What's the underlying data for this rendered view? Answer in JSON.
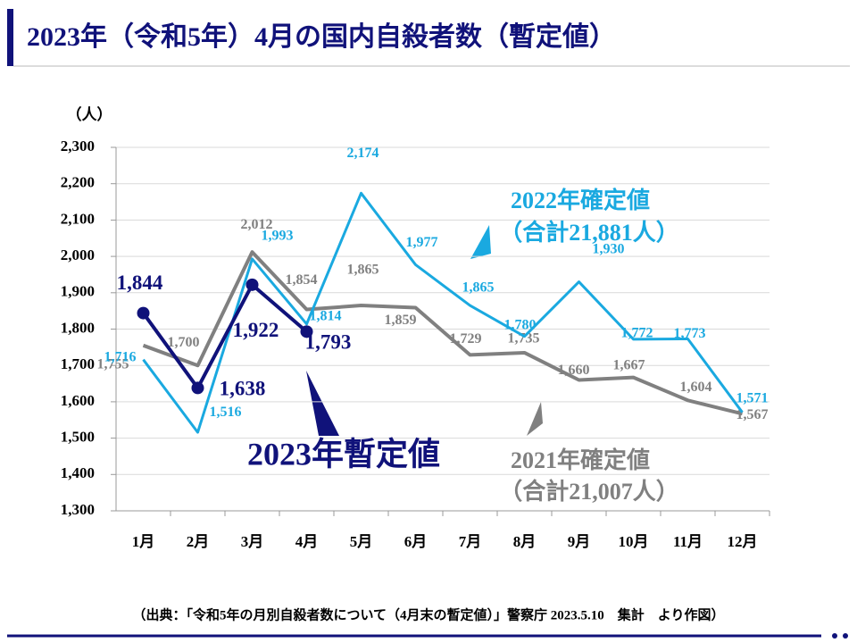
{
  "chart_data": {
    "type": "line",
    "title": "2023年（令和5年）4月の国内自殺者数（暫定値）",
    "y_unit": "（人）",
    "source": "（出典：「令和5年の月別自殺者数について（4月末の暫定値）」警察庁 2023.5.10　集計　より作図）",
    "categories": [
      "1月",
      "2月",
      "3月",
      "4月",
      "5月",
      "6月",
      "7月",
      "8月",
      "9月",
      "10月",
      "11月",
      "12月"
    ],
    "ylim": [
      1300,
      2300
    ],
    "yticks": [
      {
        "value": 1300,
        "label": "1,300"
      },
      {
        "value": 1400,
        "label": "1,400"
      },
      {
        "value": 1500,
        "label": "1,500"
      },
      {
        "value": 1600,
        "label": "1,600"
      },
      {
        "value": 1700,
        "label": "1,700"
      },
      {
        "value": 1800,
        "label": "1,800"
      },
      {
        "value": 1900,
        "label": "1,900"
      },
      {
        "value": 2000,
        "label": "2,000"
      },
      {
        "value": 2100,
        "label": "2,100"
      },
      {
        "value": 2200,
        "label": "2,200"
      },
      {
        "value": 2300,
        "label": "2,300"
      }
    ],
    "grid": true,
    "series": [
      {
        "name": "2021年確定値",
        "annotation": "（合計21,007人）",
        "color": "#808080",
        "values": [
          1755,
          1700,
          2012,
          1854,
          1865,
          1859,
          1729,
          1735,
          1660,
          1667,
          1604,
          1567
        ],
        "value_labels": [
          "1,755",
          "1,700",
          "2,012",
          "1,854",
          "1,865",
          "1,859",
          "1,729",
          "1,735",
          "1,660",
          "1,667",
          "1,604",
          "1,567"
        ]
      },
      {
        "name": "2022年確定値",
        "annotation": "（合計21,881人）",
        "color": "#1aa9e0",
        "values": [
          1716,
          1516,
          1993,
          1814,
          2174,
          1977,
          1865,
          1780,
          1930,
          1772,
          1773,
          1571
        ],
        "value_labels": [
          "1,716",
          "1,516",
          "1,993",
          "1,814",
          "2,174",
          "1,977",
          "1,865",
          "1,780",
          "1,930",
          "1,772",
          "1,773",
          "1,571"
        ]
      },
      {
        "name": "2023年暫定値",
        "color": "#10127a",
        "values": [
          1844,
          1638,
          1922,
          1793,
          null,
          null,
          null,
          null,
          null,
          null,
          null,
          null
        ],
        "value_labels": [
          "1,844",
          "1,638",
          "1,922",
          "1,793",
          null,
          null,
          null,
          null,
          null,
          null,
          null,
          null
        ]
      }
    ]
  }
}
